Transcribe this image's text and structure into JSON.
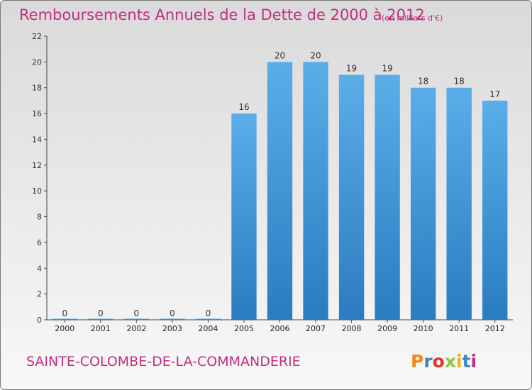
{
  "chart_data": {
    "type": "bar",
    "title": "Remboursements Annuels de la Dette de 2000 à 2012",
    "subtitle": "(en milliers d'€)",
    "categories": [
      "2000",
      "2001",
      "2002",
      "2003",
      "2004",
      "2005",
      "2006",
      "2007",
      "2008",
      "2009",
      "2010",
      "2011",
      "2012"
    ],
    "values": [
      0,
      0,
      0,
      0,
      0,
      16,
      20,
      20,
      19,
      19,
      18,
      18,
      17
    ],
    "ylim": [
      0,
      22
    ],
    "yticks": [
      0,
      2,
      4,
      6,
      8,
      10,
      12,
      14,
      16,
      18,
      20,
      22
    ],
    "grid": false,
    "bar_color_top": "#5aaee8",
    "bar_color_bottom": "#2a7cc0"
  },
  "footer": {
    "commune": "SAINTE-COLOMBE-DE-LA-COMMANDERIE",
    "logo_letters": [
      "P",
      "r",
      "o",
      "x",
      "i",
      "t",
      "i"
    ],
    "logo_colors": [
      "#f08a18",
      "#3a86c8",
      "#e83030",
      "#8cc63f",
      "#f0b020",
      "#3a86c8",
      "#c03080"
    ]
  }
}
